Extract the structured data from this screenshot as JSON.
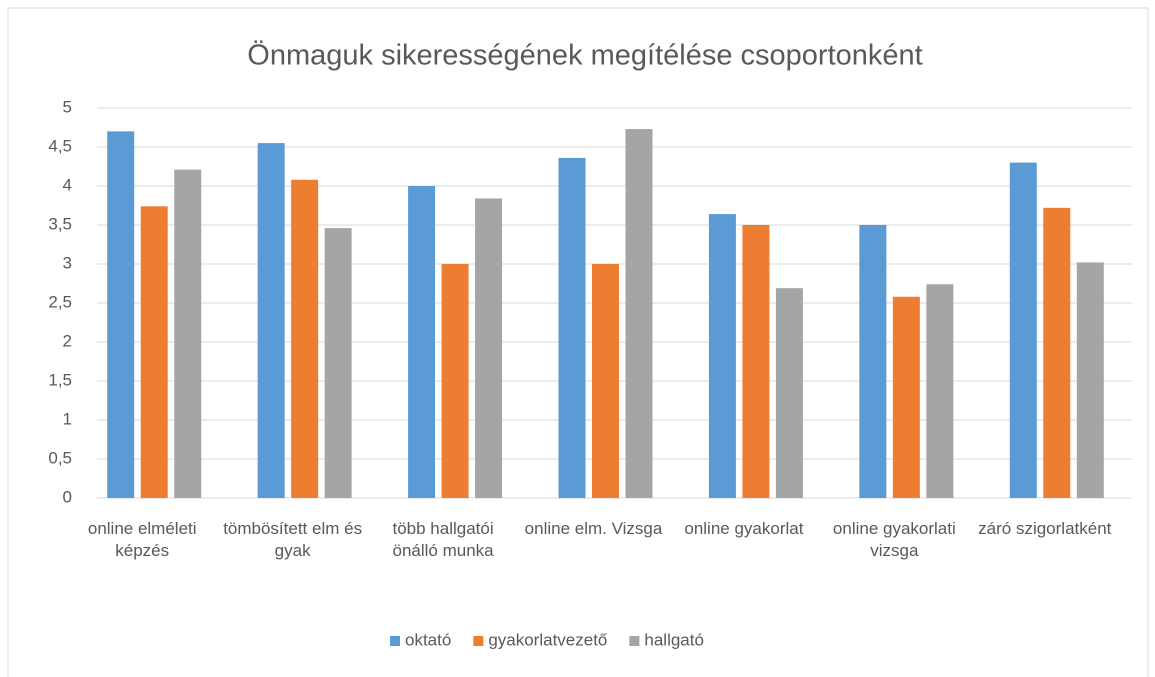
{
  "chart_data": {
    "type": "bar",
    "title": "Önmaguk sikerességének megítélése csoportonként",
    "categories": [
      "online elméleti képzés",
      "tömbösített elm és gyak",
      "több hallgatói önálló munka",
      "online elm. Vizsga",
      "online gyakorlat",
      "online gyakorlati vizsga",
      "záró szigorlatként"
    ],
    "series": [
      {
        "name": "oktató",
        "color": "#5b9bd5",
        "values": [
          4.7,
          4.55,
          4.0,
          4.36,
          3.64,
          3.5,
          4.3
        ]
      },
      {
        "name": "gyakorlatvezető",
        "color": "#ed7d31",
        "values": [
          3.74,
          4.08,
          3.0,
          3.0,
          3.5,
          2.58,
          3.72
        ]
      },
      {
        "name": "hallgató",
        "color": "#a5a5a5",
        "values": [
          4.21,
          3.46,
          3.84,
          4.73,
          2.69,
          2.74,
          3.02
        ]
      }
    ],
    "ylim": [
      0,
      5
    ],
    "yticks": [
      0,
      {
        "value": 0.5,
        "label": "0,5"
      },
      1,
      {
        "value": 1.5,
        "label": "1,5"
      },
      2,
      {
        "value": 2.5,
        "label": "2,5"
      },
      3,
      {
        "value": 3.5,
        "label": "3,5"
      },
      4,
      {
        "value": 4.5,
        "label": "4,5"
      },
      5
    ],
    "grid": true,
    "legend": "bottom"
  }
}
